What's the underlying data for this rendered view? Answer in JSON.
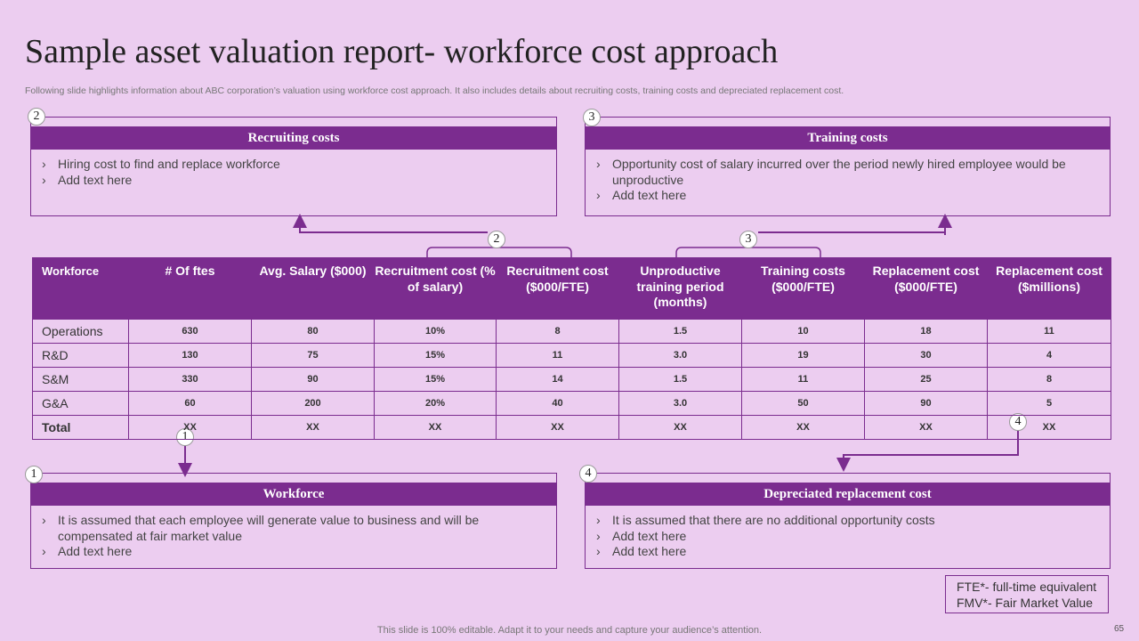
{
  "header": {
    "title": "Sample asset valuation report- workforce cost approach",
    "subtitle": "Following slide highlights information about ABC corporation’s valuation using workforce cost approach. It also includes details about recruiting costs, training costs and depreciated replacement cost."
  },
  "sections": [
    {
      "badge": "2",
      "title": "Recruiting costs",
      "bullets": [
        "Hiring cost to find and replace workforce",
        "Add text here"
      ]
    },
    {
      "badge": "3",
      "title": "Training costs",
      "bullets": [
        "Opportunity cost of salary incurred over the period newly hired employee would be unproductive",
        "Add text here"
      ]
    },
    {
      "badge": "1",
      "title": "Workforce",
      "bullets": [
        "It is assumed that each employee will generate value to business and will be compensated at fair market value",
        "Add text here"
      ]
    },
    {
      "badge": "4",
      "title": "Depreciated replacement cost",
      "bullets": [
        "It is assumed that there are no additional opportunity costs",
        "Add text here",
        "Add text here"
      ]
    }
  ],
  "table": {
    "columns": [
      "Workforce",
      "# Of ftes",
      "Avg. Salary ($000)",
      "Recruitment cost (% of salary)",
      "Recruitment cost ($000/FTE)",
      "Unproductive training period (months)",
      "Training costs ($000/FTE)",
      "Replacement cost ($000/FTE)",
      "Replacement cost ($millions)"
    ],
    "rows": [
      [
        "Operations",
        "630",
        "80",
        "10%",
        "8",
        "1.5",
        "10",
        "18",
        "11"
      ],
      [
        "R&D",
        "130",
        "75",
        "15%",
        "11",
        "3.0",
        "19",
        "30",
        "4"
      ],
      [
        "S&M",
        "330",
        "90",
        "15%",
        "14",
        "1.5",
        "11",
        "25",
        "8"
      ],
      [
        "G&A",
        "60",
        "200",
        "20%",
        "40",
        "3.0",
        "50",
        "90",
        "5"
      ],
      [
        "Total",
        "XX",
        "XX",
        "XX",
        "XX",
        "XX",
        "XX",
        "XX",
        "XX"
      ]
    ]
  },
  "connectors": [
    "2",
    "3",
    "1",
    "4"
  ],
  "footnotes": [
    "FTE*- full-time equivalent",
    "FMV*- Fair Market Value"
  ],
  "footer": {
    "text": "This slide is 100% editable. Adapt it to your needs and capture your audience’s attention.",
    "page": "65"
  }
}
